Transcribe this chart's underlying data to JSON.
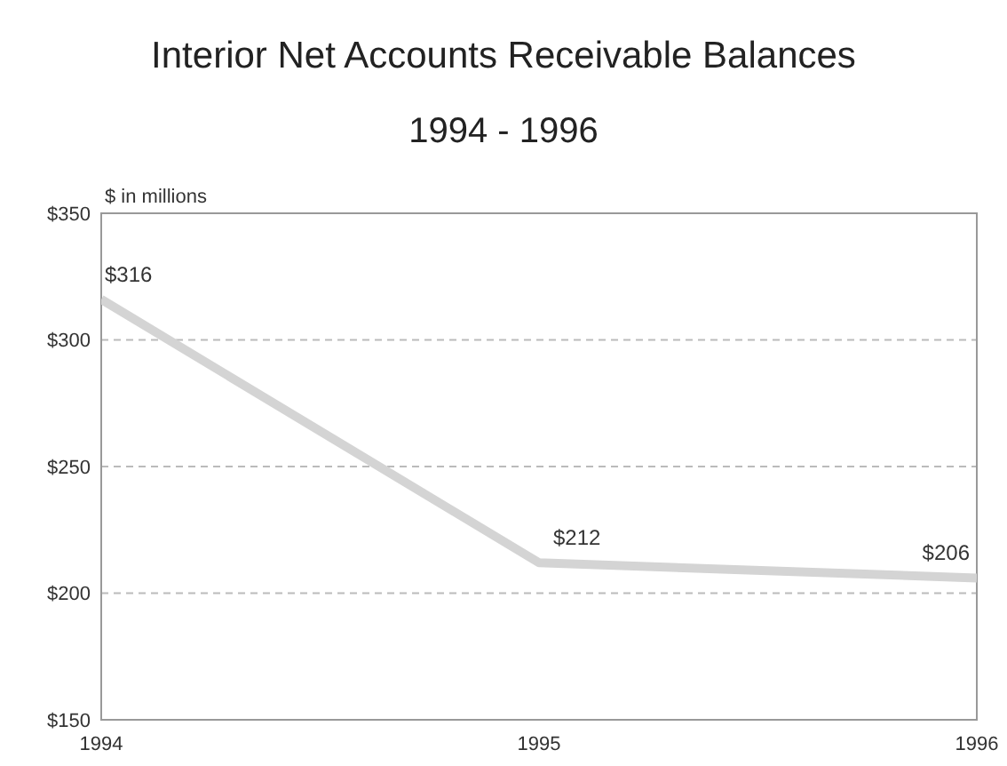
{
  "chart_data": {
    "type": "line",
    "title": "Interior Net Accounts Receivable Balances",
    "subtitle": "1994 - 1996",
    "ylabel": "$ in millions",
    "categories": [
      "1994",
      "1995",
      "1996"
    ],
    "series": [
      {
        "color": "#d4d4d4",
        "values": [
          316,
          212,
          206
        ],
        "value_labels": [
          "$316",
          "$212",
          "$206"
        ]
      }
    ],
    "ylim": [
      150,
      350
    ],
    "yticks": [
      {
        "value": 150,
        "label": "$150"
      },
      {
        "value": 200,
        "label": "$200"
      },
      {
        "value": 250,
        "label": "$250"
      },
      {
        "value": 300,
        "label": "$300"
      },
      {
        "value": 350,
        "label": "$350"
      }
    ],
    "grid": "y",
    "marker": "none",
    "line_style": "solid"
  }
}
